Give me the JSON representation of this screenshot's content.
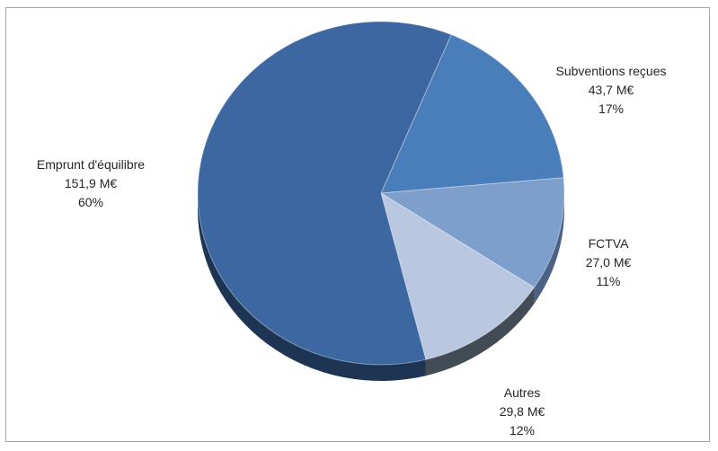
{
  "chart_data": {
    "type": "pie",
    "title": "",
    "slices": [
      {
        "name": "Subventions reçues",
        "value_text": "43,7 M€",
        "percent_text": "17%",
        "value": 43.7,
        "color": "#4a7ebb",
        "side": "#2d4e77"
      },
      {
        "name": "FCTVA",
        "value_text": "27,0 M€",
        "percent_text": "11%",
        "value": 27.0,
        "color": "#7e9ecb",
        "side": "#4b6284"
      },
      {
        "name": "Autres",
        "value_text": "29,8 M€",
        "percent_text": "12%",
        "value": 29.8,
        "color": "#b9c8e0",
        "side": "#434b55"
      },
      {
        "name": "Emprunt d'équilibre",
        "value_text": "151,9 M€",
        "percent_text": "60%",
        "value": 151.9,
        "color": "#3c67a0",
        "side": "#1d3452"
      }
    ],
    "start_angle_deg": -67.5,
    "legend": "none"
  }
}
